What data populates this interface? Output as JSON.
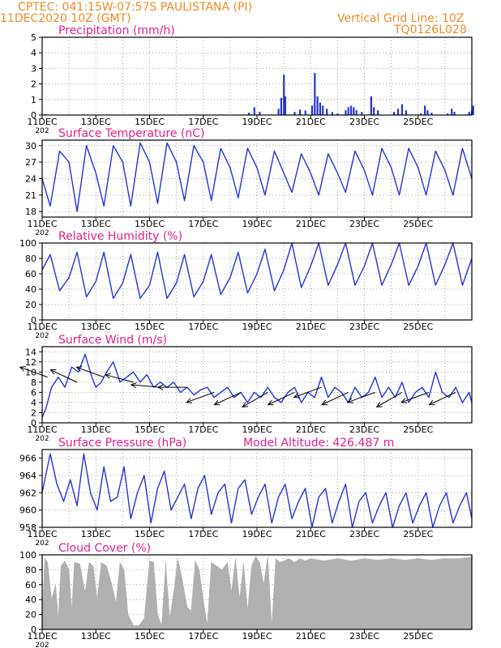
{
  "header": {
    "left_line1": "CPTEC:   041:15W-07:57S   PAULISTANA (PI)",
    "left_line2": "11DEC2020 10Z (GMT)",
    "right_line1": "Vertical Grid Line: 10Z",
    "right_line2": "TQ0126L028"
  },
  "colors": {
    "header": "#f08a24",
    "title": "#e0208c",
    "line": "#2233dd",
    "cloud": "#b0b0b0"
  },
  "x_axis": {
    "tick_labels": [
      "11DEC",
      "13DEC",
      "15DEC",
      "17DEC",
      "19DEC",
      "21DEC",
      "23DEC",
      "25DEC"
    ],
    "year_label": "202"
  },
  "chart_data": [
    {
      "type": "bar",
      "title": "Precipitation (mm/h)",
      "ylim": [
        0,
        5
      ],
      "yticks": [
        "0",
        "1",
        "2",
        "3",
        "4",
        "5"
      ],
      "grid": true,
      "bars": [
        {
          "day": 0.1,
          "v": 0.05
        },
        {
          "day": 7.7,
          "v": 0.15
        },
        {
          "day": 7.9,
          "v": 0.5
        },
        {
          "day": 8.1,
          "v": 0.2
        },
        {
          "day": 8.8,
          "v": 0.4
        },
        {
          "day": 8.9,
          "v": 1.1
        },
        {
          "day": 9.0,
          "v": 2.6
        },
        {
          "day": 9.05,
          "v": 1.2
        },
        {
          "day": 9.4,
          "v": 0.2
        },
        {
          "day": 9.6,
          "v": 0.35
        },
        {
          "day": 9.8,
          "v": 0.3
        },
        {
          "day": 10.05,
          "v": 0.6
        },
        {
          "day": 10.15,
          "v": 2.7
        },
        {
          "day": 10.25,
          "v": 1.2
        },
        {
          "day": 10.35,
          "v": 0.8
        },
        {
          "day": 10.45,
          "v": 0.6
        },
        {
          "day": 10.6,
          "v": 0.4
        },
        {
          "day": 10.8,
          "v": 0.2
        },
        {
          "day": 11.0,
          "v": 0.1
        },
        {
          "day": 11.3,
          "v": 0.3
        },
        {
          "day": 11.4,
          "v": 0.5
        },
        {
          "day": 11.5,
          "v": 0.6
        },
        {
          "day": 11.6,
          "v": 0.5
        },
        {
          "day": 11.7,
          "v": 0.3
        },
        {
          "day": 11.9,
          "v": 0.2
        },
        {
          "day": 12.25,
          "v": 1.2
        },
        {
          "day": 12.35,
          "v": 0.5
        },
        {
          "day": 12.5,
          "v": 0.3
        },
        {
          "day": 13.1,
          "v": 0.2
        },
        {
          "day": 13.25,
          "v": 0.4
        },
        {
          "day": 13.4,
          "v": 0.7
        },
        {
          "day": 13.55,
          "v": 0.3
        },
        {
          "day": 14.1,
          "v": 0.1
        },
        {
          "day": 14.25,
          "v": 0.6
        },
        {
          "day": 14.35,
          "v": 0.3
        },
        {
          "day": 14.5,
          "v": 0.15
        },
        {
          "day": 15.1,
          "v": 0.1
        },
        {
          "day": 15.25,
          "v": 0.4
        },
        {
          "day": 15.35,
          "v": 0.2
        },
        {
          "day": 15.9,
          "v": 0.2
        },
        {
          "day": 16.0,
          "v": 0.3
        },
        {
          "day": 16.05,
          "v": 0.6
        }
      ]
    },
    {
      "type": "line",
      "title": "Surface Temperature (nC)",
      "ylim": [
        17,
        31
      ],
      "yticks": [
        "18",
        "21",
        "24",
        "27",
        "30"
      ],
      "ytick_values": [
        18,
        21,
        24,
        27,
        30
      ],
      "grid": true,
      "x": [
        0,
        0.3,
        0.65,
        1.0,
        1.3,
        1.65,
        2.0,
        2.3,
        2.65,
        3.0,
        3.3,
        3.65,
        4.0,
        4.3,
        4.65,
        5.0,
        5.3,
        5.65,
        6.0,
        6.3,
        6.65,
        7.0,
        7.3,
        7.65,
        8.0,
        8.3,
        8.65,
        9.0,
        9.3,
        9.65,
        10.0,
        10.3,
        10.65,
        11.0,
        11.3,
        11.65,
        12.0,
        12.3,
        12.65,
        13.0,
        13.3,
        13.65,
        14.0,
        14.3,
        14.65,
        15.0,
        15.3,
        15.65,
        16.0
      ],
      "y": [
        24,
        19,
        29,
        27,
        18,
        30,
        25,
        19,
        30,
        27,
        19,
        30.5,
        27,
        19.5,
        30.5,
        27,
        20,
        30,
        27,
        20,
        29.5,
        26,
        20.5,
        29.5,
        26,
        21,
        29,
        25,
        21.5,
        28.5,
        25,
        21,
        28.5,
        25,
        21.5,
        29,
        25.5,
        21,
        29.5,
        26,
        21,
        29.5,
        26,
        21,
        29,
        25.5,
        21,
        29.5,
        24
      ]
    },
    {
      "type": "line",
      "title": "Relative Humidity (%)",
      "ylim": [
        0,
        100
      ],
      "yticks": [
        "0",
        "20",
        "40",
        "60",
        "80",
        "100"
      ],
      "ytick_values": [
        0,
        20,
        40,
        60,
        80,
        100
      ],
      "grid": true,
      "x": [
        0,
        0.3,
        0.65,
        1.0,
        1.3,
        1.65,
        2.0,
        2.3,
        2.65,
        3.0,
        3.3,
        3.65,
        4.0,
        4.3,
        4.65,
        5.0,
        5.3,
        5.65,
        6.0,
        6.3,
        6.65,
        7.0,
        7.3,
        7.65,
        8.0,
        8.3,
        8.65,
        9.0,
        9.3,
        9.65,
        10.0,
        10.3,
        10.65,
        11.0,
        11.3,
        11.65,
        12.0,
        12.3,
        12.65,
        13.0,
        13.3,
        13.65,
        14.0,
        14.3,
        14.65,
        15.0,
        15.3,
        15.65,
        16.0
      ],
      "y": [
        65,
        85,
        38,
        55,
        88,
        30,
        50,
        88,
        28,
        48,
        85,
        28,
        45,
        88,
        28,
        48,
        85,
        30,
        50,
        85,
        33,
        55,
        88,
        35,
        60,
        92,
        38,
        65,
        100,
        42,
        70,
        100,
        45,
        72,
        100,
        45,
        70,
        100,
        45,
        72,
        100,
        45,
        70,
        100,
        45,
        72,
        100,
        45,
        80
      ]
    },
    {
      "type": "line",
      "title": "Surface Wind (m/s)",
      "ylim": [
        0,
        15
      ],
      "yticks": [
        "0",
        "2",
        "4",
        "6",
        "8",
        "10",
        "12",
        "14"
      ],
      "ytick_values": [
        0,
        2,
        4,
        6,
        8,
        10,
        12,
        14
      ],
      "grid": true,
      "x": [
        0,
        0.15,
        0.35,
        0.6,
        0.85,
        1.1,
        1.35,
        1.6,
        1.85,
        2.0,
        2.2,
        2.4,
        2.65,
        2.9,
        3.15,
        3.4,
        3.65,
        3.9,
        4.15,
        4.4,
        4.65,
        4.9,
        5.15,
        5.4,
        5.65,
        5.9,
        6.15,
        6.4,
        6.65,
        6.9,
        7.15,
        7.4,
        7.65,
        7.9,
        8.15,
        8.4,
        8.65,
        8.9,
        9.15,
        9.4,
        9.65,
        9.9,
        10.15,
        10.4,
        10.65,
        10.9,
        11.15,
        11.4,
        11.65,
        11.9,
        12.15,
        12.4,
        12.65,
        12.9,
        13.15,
        13.4,
        13.65,
        13.9,
        14.15,
        14.4,
        14.65,
        14.9,
        15.15,
        15.4,
        15.65,
        15.9,
        16.0
      ],
      "y": [
        1,
        3,
        7,
        9,
        7,
        11,
        10,
        13.5,
        9,
        7,
        8,
        10,
        12,
        8,
        9,
        10,
        8,
        9.5,
        7,
        8,
        7,
        8,
        6,
        7,
        5.5,
        6.5,
        7,
        5,
        6,
        7,
        5,
        6,
        4,
        6,
        5,
        7,
        5,
        4,
        6,
        7,
        4,
        6,
        5,
        9,
        5,
        7,
        6,
        4,
        7,
        5,
        6,
        9,
        5,
        7,
        5,
        8,
        4,
        6,
        7,
        5,
        10,
        6,
        5,
        7,
        4,
        6,
        4
      ],
      "arrows": [
        {
          "day": 0.2,
          "speed": 9,
          "dir_deg": 160
        },
        {
          "day": 1.3,
          "speed": 8,
          "dir_deg": 155
        },
        {
          "day": 2.3,
          "speed": 9,
          "dir_deg": 160
        },
        {
          "day": 3.4,
          "speed": 8,
          "dir_deg": 165
        },
        {
          "day": 4.4,
          "speed": 7,
          "dir_deg": 175
        },
        {
          "day": 5.4,
          "speed": 7,
          "dir_deg": 180
        },
        {
          "day": 6.4,
          "speed": 6,
          "dir_deg": 200
        },
        {
          "day": 7.4,
          "speed": 6,
          "dir_deg": 205
        },
        {
          "day": 8.4,
          "speed": 6,
          "dir_deg": 210
        },
        {
          "day": 9.4,
          "speed": 6,
          "dir_deg": 205
        },
        {
          "day": 10.4,
          "speed": 7,
          "dir_deg": 200
        },
        {
          "day": 11.4,
          "speed": 6,
          "dir_deg": 205
        },
        {
          "day": 12.4,
          "speed": 6,
          "dir_deg": 200
        },
        {
          "day": 13.4,
          "speed": 6,
          "dir_deg": 210
        },
        {
          "day": 14.4,
          "speed": 6,
          "dir_deg": 200
        },
        {
          "day": 15.4,
          "speed": 6,
          "dir_deg": 205
        }
      ]
    },
    {
      "type": "line",
      "title": "Surface Pressure (hPa)",
      "subtitle": "Model Altitude: 426.487 m",
      "ylim": [
        958,
        967
      ],
      "yticks": [
        "958",
        "960",
        "962",
        "964",
        "966"
      ],
      "ytick_values": [
        958,
        960,
        962,
        964,
        966
      ],
      "grid": true,
      "x": [
        0,
        0.3,
        0.55,
        0.8,
        1.05,
        1.3,
        1.55,
        1.8,
        2.05,
        2.3,
        2.55,
        2.8,
        3.05,
        3.3,
        3.55,
        3.8,
        4.05,
        4.3,
        4.55,
        4.8,
        5.05,
        5.3,
        5.55,
        5.8,
        6.05,
        6.3,
        6.55,
        6.8,
        7.05,
        7.3,
        7.55,
        7.8,
        8.05,
        8.3,
        8.55,
        8.8,
        9.05,
        9.3,
        9.55,
        9.8,
        10.05,
        10.3,
        10.55,
        10.8,
        11.05,
        11.3,
        11.55,
        11.8,
        12.05,
        12.3,
        12.55,
        12.8,
        13.05,
        13.3,
        13.55,
        13.8,
        14.05,
        14.3,
        14.55,
        14.8,
        15.05,
        15.3,
        15.55,
        15.8,
        16.0
      ],
      "y": [
        962,
        966.5,
        963,
        961,
        963.5,
        960.5,
        966.5,
        962,
        960,
        965,
        961,
        961.5,
        965,
        959,
        962,
        964,
        958.5,
        962.5,
        964.5,
        960,
        961.5,
        963,
        959,
        962.5,
        964,
        959.5,
        962,
        963,
        958.5,
        962.5,
        963.5,
        959.5,
        961.5,
        963,
        958.5,
        961.5,
        963,
        959,
        961,
        962.5,
        958,
        961.5,
        962.5,
        958.5,
        961,
        963,
        958,
        961,
        962,
        958.5,
        960.5,
        962,
        958,
        960.5,
        962,
        958.5,
        960.5,
        962,
        958,
        960.5,
        962,
        958.5,
        960.5,
        962,
        959
      ]
    },
    {
      "type": "area",
      "title": "Cloud Cover (%)",
      "ylim": [
        0,
        100
      ],
      "yticks": [
        "0",
        "20",
        "40",
        "60",
        "80",
        "100"
      ],
      "ytick_values": [
        0,
        20,
        40,
        60,
        80,
        100
      ],
      "grid": true,
      "x": [
        0,
        0.1,
        0.2,
        0.35,
        0.5,
        0.6,
        0.7,
        0.85,
        1.0,
        1.1,
        1.2,
        1.4,
        1.6,
        1.75,
        1.9,
        2.05,
        2.2,
        2.4,
        2.6,
        2.75,
        2.9,
        3.05,
        3.2,
        3.4,
        3.6,
        3.8,
        4.0,
        4.15,
        4.3,
        4.45,
        4.6,
        4.75,
        4.9,
        5.05,
        5.2,
        5.4,
        5.55,
        5.7,
        5.85,
        6.0,
        6.15,
        6.3,
        6.5,
        6.7,
        6.9,
        7.05,
        7.2,
        7.35,
        7.5,
        7.65,
        7.8,
        7.95,
        8.1,
        8.25,
        8.4,
        8.55,
        8.7,
        8.85,
        9.0,
        9.2,
        9.4,
        9.6,
        9.8,
        10.0,
        10.5,
        11.0,
        11.5,
        12.0,
        12.5,
        13.0,
        13.5,
        14.0,
        14.5,
        15.0,
        15.5,
        16.0
      ],
      "y": [
        20,
        95,
        90,
        40,
        60,
        15,
        85,
        92,
        80,
        25,
        90,
        88,
        50,
        90,
        85,
        40,
        90,
        85,
        60,
        35,
        90,
        80,
        20,
        5,
        5,
        15,
        92,
        90,
        20,
        5,
        90,
        15,
        50,
        95,
        70,
        30,
        25,
        92,
        80,
        40,
        5,
        90,
        85,
        80,
        90,
        50,
        95,
        40,
        90,
        25,
        85,
        98,
        90,
        60,
        98,
        5,
        95,
        90,
        92,
        95,
        90,
        95,
        92,
        95,
        92,
        95,
        92,
        95,
        93,
        95,
        93,
        95,
        93,
        95,
        95,
        97
      ]
    }
  ]
}
